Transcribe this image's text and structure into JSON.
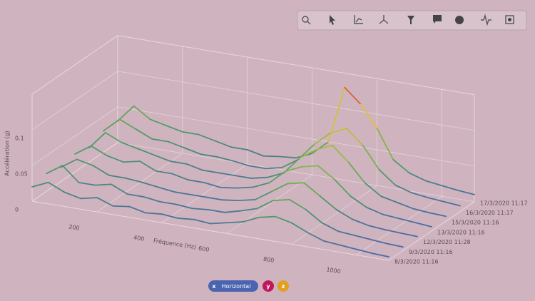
{
  "chart_data": {
    "type": "waterfall3d",
    "xlabel": "Fréquence (Hz)",
    "zlabel": "Accélération (g)",
    "x": [
      0,
      50,
      100,
      150,
      200,
      250,
      300,
      350,
      400,
      450,
      500,
      550,
      600,
      650,
      700,
      750,
      800,
      850,
      900,
      950,
      1000,
      1050,
      1100
    ],
    "xlim": [
      0,
      1100
    ],
    "xticks": [
      200,
      400,
      600,
      800,
      1000
    ],
    "zlim": [
      0,
      0.15
    ],
    "zticks": [
      0,
      0.05,
      0.1
    ],
    "colorscale": [
      "#4a5fb0",
      "#4f9a6a",
      "#8fb844",
      "#e8c23a",
      "#d9342b"
    ],
    "grid": true,
    "series": [
      {
        "name": "8/3/2020 11:16",
        "values": [
          0.02,
          0.03,
          0.02,
          0.015,
          0.02,
          0.012,
          0.015,
          0.01,
          0.012,
          0.01,
          0.012,
          0.01,
          0.015,
          0.02,
          0.03,
          0.035,
          0.03,
          0.02,
          0.012,
          0.01,
          0.008,
          0.006,
          0.005
        ]
      },
      {
        "name": "9/3/2020 11:16",
        "values": [
          0.025,
          0.04,
          0.02,
          0.02,
          0.025,
          0.015,
          0.015,
          0.012,
          0.012,
          0.01,
          0.012,
          0.012,
          0.018,
          0.025,
          0.04,
          0.045,
          0.035,
          0.02,
          0.012,
          0.01,
          0.008,
          0.006,
          0.005
        ]
      },
      {
        "name": "12/3/2020 11:28",
        "values": [
          0.02,
          0.035,
          0.03,
          0.02,
          0.02,
          0.018,
          0.015,
          0.012,
          0.012,
          0.012,
          0.012,
          0.015,
          0.02,
          0.035,
          0.05,
          0.055,
          0.04,
          0.025,
          0.015,
          0.01,
          0.008,
          0.007,
          0.006
        ]
      },
      {
        "name": "13/3/2020 11:16",
        "values": [
          0.025,
          0.04,
          0.03,
          0.025,
          0.03,
          0.02,
          0.02,
          0.015,
          0.015,
          0.012,
          0.015,
          0.02,
          0.03,
          0.05,
          0.06,
          0.065,
          0.05,
          0.03,
          0.018,
          0.012,
          0.01,
          0.008,
          0.006
        ]
      },
      {
        "name": "15/3/2020 11:16",
        "values": [
          0.02,
          0.045,
          0.035,
          0.03,
          0.025,
          0.02,
          0.02,
          0.015,
          0.015,
          0.015,
          0.015,
          0.02,
          0.03,
          0.055,
          0.07,
          0.08,
          0.06,
          0.035,
          0.02,
          0.015,
          0.01,
          0.008,
          0.007
        ]
      },
      {
        "name": "16/3/2020 11:17",
        "values": [
          0.03,
          0.05,
          0.04,
          0.03,
          0.03,
          0.025,
          0.02,
          0.02,
          0.018,
          0.015,
          0.015,
          0.02,
          0.035,
          0.06,
          0.08,
          0.09,
          0.07,
          0.04,
          0.022,
          0.015,
          0.012,
          0.01,
          0.008
        ]
      },
      {
        "name": "17/3/2020 11:17",
        "values": [
          0.03,
          0.055,
          0.04,
          0.035,
          0.03,
          0.03,
          0.025,
          0.02,
          0.02,
          0.015,
          0.018,
          0.02,
          0.03,
          0.05,
          0.13,
          0.11,
          0.08,
          0.04,
          0.025,
          0.018,
          0.015,
          0.012,
          0.01
        ]
      }
    ],
    "legend": [
      {
        "key": "x",
        "label": "Horizontal",
        "color": "#4a64b0"
      },
      {
        "key": "y",
        "color": "#c2185b"
      },
      {
        "key": "z",
        "color": "#e0a020"
      }
    ]
  }
}
